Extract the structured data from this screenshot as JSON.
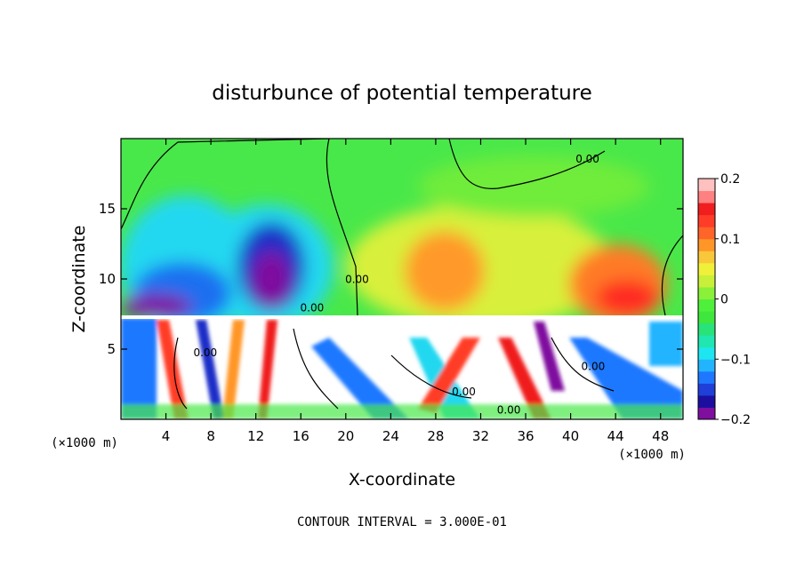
{
  "chart_data": {
    "type": "heatmap",
    "title": "disturbunce of potential temperature",
    "xlabel": "X-coordinate",
    "ylabel": "Z-coordinate",
    "x_unit": "(×1000 m)",
    "y_unit": "(×1000 m)",
    "xlim": [
      0,
      50
    ],
    "ylim": [
      0,
      20
    ],
    "x_ticks": [
      4,
      8,
      12,
      16,
      20,
      24,
      28,
      32,
      36,
      40,
      44,
      48
    ],
    "y_ticks": [
      5,
      10,
      15
    ],
    "colorbar": {
      "vmin": -0.2,
      "vmax": 0.2,
      "ticks": [
        {
          "value": 0.2,
          "label": "0.2"
        },
        {
          "value": 0.1,
          "label": "0.1"
        },
        {
          "value": 0.0,
          "label": "0"
        },
        {
          "value": -0.1,
          "label": "-0.1"
        },
        {
          "value": -0.2,
          "label": "-0.2"
        }
      ],
      "colors": [
        "#7f0f9f",
        "#1c0fa0",
        "#1f3fd8",
        "#1e78ff",
        "#22b4ff",
        "#1ee6f0",
        "#20e6b0",
        "#28e27a",
        "#3ee63e",
        "#4ff03b",
        "#8af03a",
        "#c8f03a",
        "#f0f03a",
        "#f8c83a",
        "#ff9628",
        "#ff6428",
        "#ff3c28",
        "#f01e1e",
        "#ff8080",
        "#ffc0c0"
      ]
    },
    "contour_labels": [
      {
        "text": "0.00",
        "x": 41.5,
        "y": 18.3
      },
      {
        "text": "0.00",
        "x": 21.0,
        "y": 9.7
      },
      {
        "text": "0.00",
        "x": 30.5,
        "y": 1.7
      },
      {
        "text": "0.00",
        "x": 34.5,
        "y": 0.4
      },
      {
        "text": "0.00",
        "x": 42.0,
        "y": 3.5
      },
      {
        "text": "0.00",
        "x": 7.5,
        "y": 4.5
      },
      {
        "text": "0.00",
        "x": 17.0,
        "y": 7.7
      }
    ],
    "contour_interval_text": "CONTOUR INTERVAL = 3.000E-01"
  }
}
